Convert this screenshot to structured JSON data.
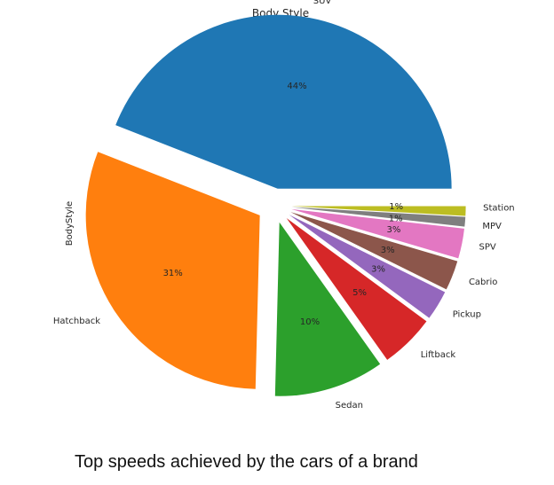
{
  "chart_data": {
    "type": "pie",
    "title": "Body Style",
    "ylabel": "BodyStyle",
    "start_angle_deg": 0,
    "direction": "counterclockwise",
    "slices": [
      {
        "label": "SUV",
        "value": 44.4,
        "pct_label": "44%",
        "color": "#1f77b4",
        "explode": 0.1
      },
      {
        "label": "Hatchback",
        "value": 30.8,
        "pct_label": "31%",
        "color": "#ff7f0e",
        "explode": 0.1
      },
      {
        "label": "Sedan",
        "value": 10.3,
        "pct_label": "10%",
        "color": "#2ca02c",
        "explode": 0.1
      },
      {
        "label": "Liftback",
        "value": 5.1,
        "pct_label": "5%",
        "color": "#d62728",
        "explode": 0.1
      },
      {
        "label": "Pickup",
        "value": 2.8,
        "pct_label": "3%",
        "color": "#9467bd",
        "explode": 0.1
      },
      {
        "label": "Cabrio",
        "value": 2.8,
        "pct_label": "3%",
        "color": "#8c564b",
        "explode": 0.1
      },
      {
        "label": "SPV",
        "value": 2.8,
        "pct_label": "3%",
        "color": "#e377c2",
        "explode": 0.1
      },
      {
        "label": "MPV",
        "value": 0.9,
        "pct_label": "1%",
        "color": "#7f7f7f",
        "explode": 0.1
      },
      {
        "label": "Station",
        "value": 0.9,
        "pct_label": "1%",
        "color": "#bcbd22",
        "explode": 0.1
      }
    ]
  },
  "caption": "Top speeds achieved by the cars of a brand"
}
